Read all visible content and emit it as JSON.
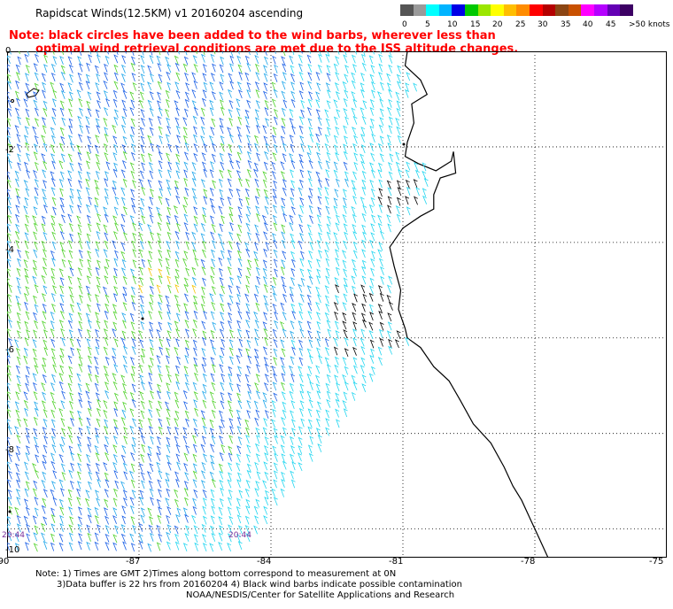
{
  "header": {
    "title": "Rapidscat Winds(12.5KM) v1 20160204 ascending",
    "note_line1": "Note: black circles have been added to the wind barbs, wherever less than",
    "note_line2": "optimal wind retrieval conditions are met due to the ISS altitude changes."
  },
  "legend": {
    "colors": [
      "#555555",
      "#9a9a9a",
      "#00ffff",
      "#00b4ff",
      "#0000e6",
      "#00c800",
      "#9be600",
      "#ffff00",
      "#ffbe00",
      "#ff8c00",
      "#ff0000",
      "#b40000",
      "#8b4513",
      "#c85000",
      "#ff00ff",
      "#b400ff",
      "#6400b4",
      "#3c0064"
    ],
    "labels": [
      "0",
      "5",
      "10",
      "15",
      "20",
      "25",
      "30",
      "35",
      "40",
      "45",
      ">50 knots"
    ]
  },
  "map": {
    "x_ticks": [
      "-90",
      "-87",
      "-84",
      "-81",
      "-78",
      "-75"
    ],
    "y_ticks": [
      "0",
      "-2",
      "-4",
      "-6",
      "-8",
      "-10"
    ],
    "time_labels": [
      "20:44",
      "20:44"
    ]
  },
  "footer": {
    "line1": "Note: 1) Times are GMT 2)Times along bottom correspond to measurement at 0N",
    "line2": "3)Data buffer is 22 hrs from 20160204 4) Black wind barbs indicate possible contamination",
    "line3": "NOAA/NESDIS/Center for Satellite Applications and Research"
  }
}
